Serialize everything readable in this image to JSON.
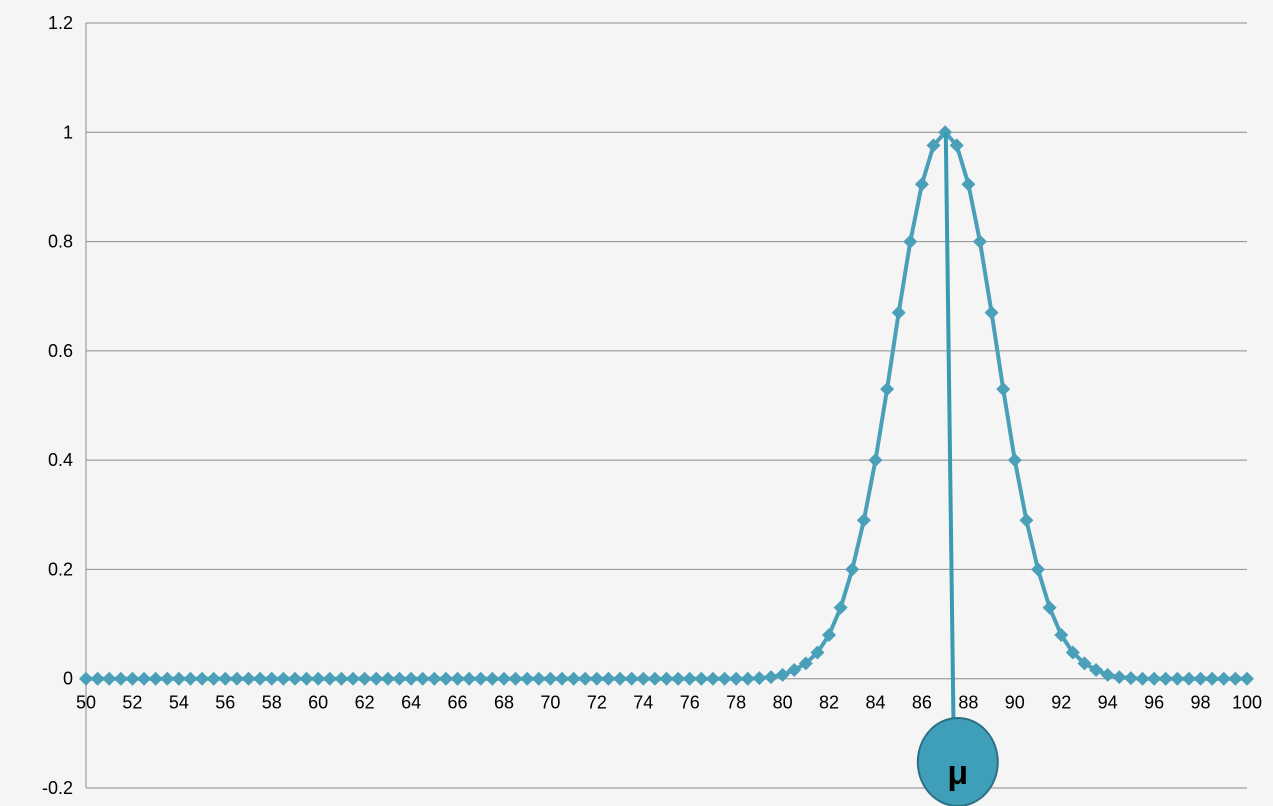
{
  "chart_data": {
    "type": "line",
    "title": "",
    "xlabel": "",
    "ylabel": "",
    "xlim": [
      50,
      100
    ],
    "ylim": [
      -0.2,
      1.2
    ],
    "x_ticks": [
      "50",
      "52",
      "54",
      "56",
      "58",
      "60",
      "62",
      "64",
      "66",
      "68",
      "70",
      "72",
      "74",
      "76",
      "78",
      "80",
      "82",
      "84",
      "86",
      "88",
      "90",
      "92",
      "94",
      "96",
      "98",
      "100"
    ],
    "y_ticks": [
      "-0.2",
      "0",
      "0.2",
      "0.4",
      "0.6",
      "0.8",
      "1",
      "1.2"
    ],
    "grid": true,
    "legend": "none",
    "series": [
      {
        "marker": "diamond",
        "x": [
          50,
          50.5,
          51,
          51.5,
          52,
          52.5,
          53,
          53.5,
          54,
          54.5,
          55,
          55.5,
          56,
          56.5,
          57,
          57.5,
          58,
          58.5,
          59,
          59.5,
          60,
          60.5,
          61,
          61.5,
          62,
          62.5,
          63,
          63.5,
          64,
          64.5,
          65,
          65.5,
          66,
          66.5,
          67,
          67.5,
          68,
          68.5,
          69,
          69.5,
          70,
          70.5,
          71,
          71.5,
          72,
          72.5,
          73,
          73.5,
          74,
          74.5,
          75,
          75.5,
          76,
          76.5,
          77,
          77.5,
          78,
          78.5,
          79,
          79.5,
          80,
          80.5,
          81,
          81.5,
          82,
          82.5,
          83,
          83.5,
          84,
          84.5,
          85,
          85.5,
          86,
          86.5,
          87,
          87.5,
          88,
          88.5,
          89,
          89.5,
          90,
          90.5,
          91,
          91.5,
          92,
          92.5,
          93,
          93.5,
          94,
          94.5,
          95,
          95.5,
          96,
          96.5,
          97,
          97.5,
          98,
          98.5,
          99,
          99.5,
          100
        ],
        "y": [
          0,
          0,
          0,
          0,
          0,
          0,
          0,
          0,
          0,
          0,
          0,
          0,
          0,
          0,
          0,
          0,
          0,
          0,
          0,
          0,
          0,
          0,
          0,
          0,
          0,
          0,
          0,
          0,
          0,
          0,
          0,
          0,
          0,
          0,
          0,
          0,
          0,
          0,
          0,
          0,
          0,
          0,
          0,
          0,
          0,
          0,
          0,
          0,
          0,
          0,
          0,
          0,
          0,
          0,
          0,
          0,
          0,
          0,
          0.001,
          0.003,
          0.007,
          0.016,
          0.028,
          0.048,
          0.08,
          0.13,
          0.2,
          0.29,
          0.4,
          0.53,
          0.67,
          0.8,
          0.905,
          0.976,
          1,
          0.976,
          0.905,
          0.8,
          0.67,
          0.53,
          0.4,
          0.29,
          0.2,
          0.13,
          0.08,
          0.048,
          0.028,
          0.016,
          0.007,
          0.003,
          0.001,
          0,
          0,
          0,
          0,
          0,
          0,
          0,
          0,
          0,
          0
        ]
      }
    ],
    "mean_line_x": 87.2,
    "annotation": {
      "text": "μ",
      "x": 87.2
    }
  },
  "colors": {
    "line": "#4aa0b8",
    "marker": "#4aa0b8",
    "mean_line": "#3a9ab3",
    "bubble_fill": "#3f9fb9",
    "bubble_stroke": "#2d6f86",
    "grid": "#8c8c8c",
    "axis": "#8c8c8c",
    "background": "#f5f5f5"
  }
}
